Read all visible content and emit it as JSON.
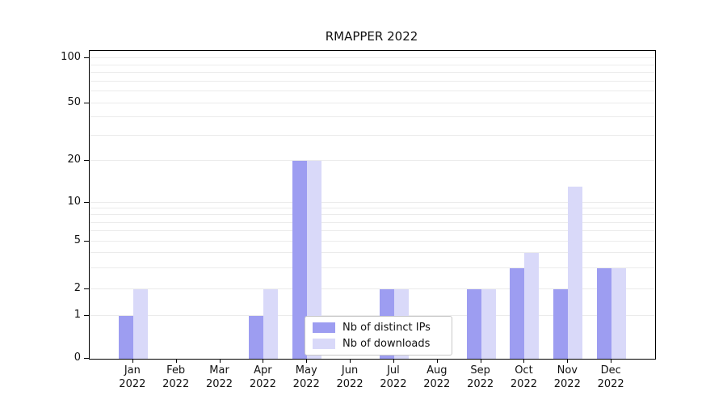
{
  "chart_data": {
    "type": "bar",
    "title": "RMAPPER 2022",
    "year": "2022",
    "categories": [
      "Jan",
      "Feb",
      "Mar",
      "Apr",
      "May",
      "Jun",
      "Jul",
      "Aug",
      "Sep",
      "Oct",
      "Nov",
      "Dec"
    ],
    "series": [
      {
        "name": "Nb of distinct IPs",
        "color": "#9d9df1",
        "values": [
          1,
          0,
          0,
          1,
          20,
          0,
          2,
          0,
          2,
          3,
          2,
          3
        ]
      },
      {
        "name": "Nb of downloads",
        "color": "#d9d9f9",
        "values": [
          2,
          0,
          0,
          2,
          20,
          0,
          2,
          0,
          2,
          4,
          13,
          3
        ]
      }
    ],
    "yticks": [
      0,
      1,
      2,
      5,
      10,
      20,
      50,
      100
    ],
    "scale": "symlog",
    "ylim": [
      0,
      110
    ],
    "grid": true,
    "legend_position": "lower center"
  },
  "colors": {
    "background": "#ffffff",
    "grid": "#ebebeb",
    "axis": "#000000"
  }
}
